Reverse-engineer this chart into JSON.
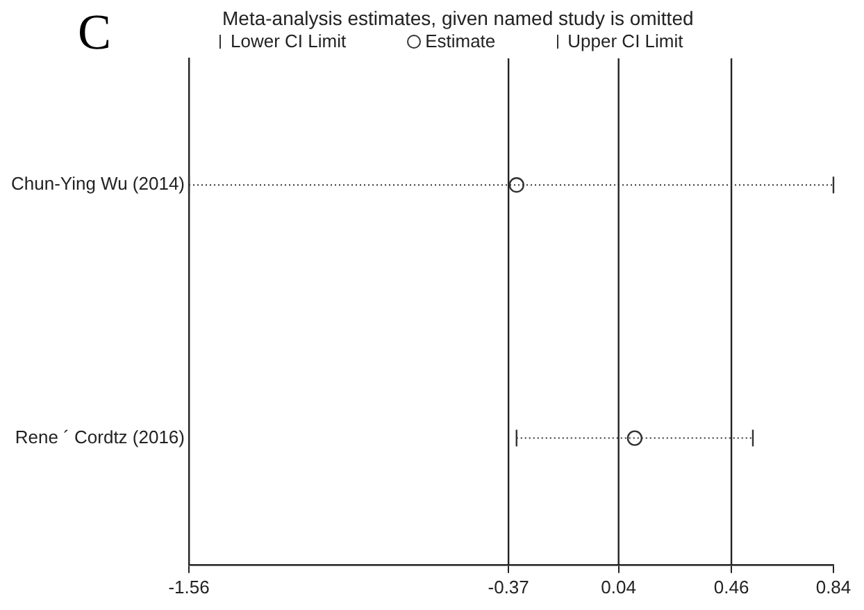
{
  "chart_data": {
    "type": "scatter",
    "orientation": "horizontal",
    "title": "Meta-analysis estimates, given named study is omitted",
    "annotations": [
      "C",
      "Lower CI Limit",
      "Upper CI Limit"
    ],
    "categories": [
      "Chun-Ying Wu (2014)",
      "Rene ´ Cordtz (2016)"
    ],
    "series": [
      {
        "name": "Estimate",
        "color": "#333333",
        "marker": "circle",
        "values": [
          -0.34,
          0.1
        ],
        "errors": [
          [
            -1.56,
            0.84
          ],
          [
            -0.34,
            0.54
          ]
        ]
      }
    ],
    "xlim": [
      -1.56,
      0.84
    ],
    "xticks": [
      -1.56,
      -0.37,
      0.04,
      0.46,
      0.84
    ],
    "ref_lines": [
      {
        "axis": "x",
        "value": -0.37,
        "color": "#222222"
      },
      {
        "axis": "x",
        "value": 0.04,
        "color": "#222222"
      },
      {
        "axis": "x",
        "value": 0.46,
        "color": "#222222"
      }
    ],
    "line_style": "dotted",
    "grid": false,
    "legend": "top left"
  }
}
